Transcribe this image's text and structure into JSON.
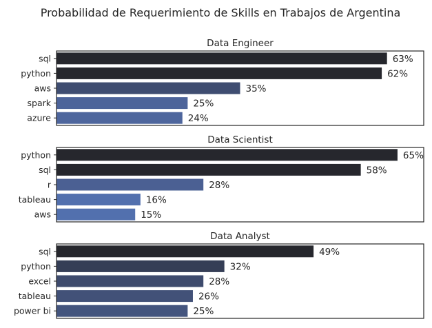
{
  "chart_data": {
    "type": "bar",
    "title": "Probabilidad de Requerimiento de Skills en Trabajos de Argentina",
    "orientation": "horizontal",
    "value_suffix": "%",
    "xlim": [
      0,
      70
    ],
    "grid": false,
    "legend": "none",
    "colors": {
      "dark": "#26272d",
      "mid": "#4a5e8f",
      "light": "#5270ae"
    },
    "panels": [
      {
        "title": "Data Engineer",
        "categories": [
          "sql",
          "python",
          "aws",
          "spark",
          "azure"
        ],
        "values": [
          63,
          62,
          35,
          25,
          24
        ]
      },
      {
        "title": "Data Scientist",
        "categories": [
          "python",
          "sql",
          "r",
          "tableau",
          "aws"
        ],
        "values": [
          65,
          58,
          28,
          16,
          15
        ]
      },
      {
        "title": "Data Analyst",
        "categories": [
          "sql",
          "python",
          "excel",
          "tableau",
          "power bi"
        ],
        "values": [
          49,
          32,
          28,
          26,
          25
        ]
      }
    ]
  }
}
